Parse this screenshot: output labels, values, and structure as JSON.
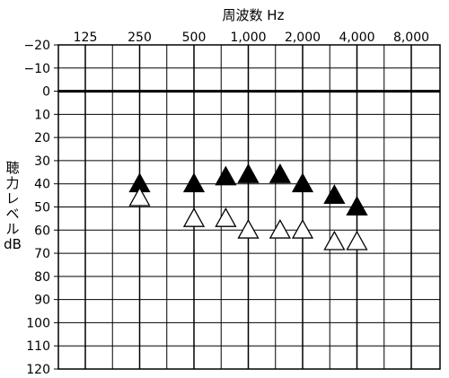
{
  "chart_data": {
    "type": "scatter",
    "xlabel": "周波数 Hz",
    "ylabel": "聴力レベル dB",
    "x_scale": "log2",
    "x_ticks": [
      125,
      250,
      500,
      1000,
      2000,
      4000,
      8000
    ],
    "x_tick_labels": [
      "125",
      "250",
      "500",
      "1,000",
      "2,000",
      "4,000",
      "8,000"
    ],
    "y_ticks": [
      -20,
      -10,
      0,
      10,
      20,
      30,
      40,
      50,
      60,
      70,
      80,
      90,
      100,
      110,
      120
    ],
    "y_tick_labels": [
      "−20",
      "−10",
      "0",
      "10",
      "20",
      "30",
      "40",
      "50",
      "60",
      "70",
      "80",
      "90",
      "100",
      "110",
      "120"
    ],
    "y_reversed": true,
    "ylim": [
      -20,
      120
    ],
    "reference_line_y": 0,
    "grid": true,
    "colors": {
      "filled": "#000000",
      "open_fill": "#ffffff",
      "open_stroke": "#000000",
      "grid": "#000000"
    },
    "series": [
      {
        "marker": "filled-triangle",
        "points": [
          {
            "x": 250,
            "y": 40
          },
          {
            "x": 500,
            "y": 40
          },
          {
            "x": 750,
            "y": 37
          },
          {
            "x": 1000,
            "y": 36
          },
          {
            "x": 1500,
            "y": 36
          },
          {
            "x": 2000,
            "y": 40
          },
          {
            "x": 3000,
            "y": 45
          },
          {
            "x": 4000,
            "y": 50
          }
        ]
      },
      {
        "marker": "open-triangle",
        "points": [
          {
            "x": 250,
            "y": 46
          },
          {
            "x": 500,
            "y": 55
          },
          {
            "x": 750,
            "y": 55
          },
          {
            "x": 1000,
            "y": 60
          },
          {
            "x": 1500,
            "y": 60
          },
          {
            "x": 2000,
            "y": 60
          },
          {
            "x": 3000,
            "y": 65
          },
          {
            "x": 4000,
            "y": 65
          }
        ]
      }
    ]
  }
}
